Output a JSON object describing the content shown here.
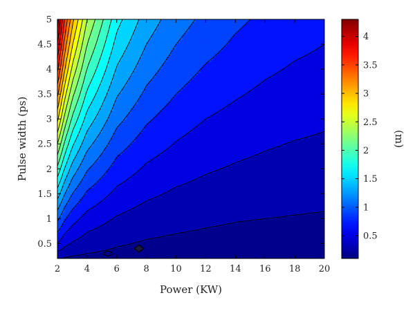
{
  "chart_data": {
    "type": "heatmap",
    "subtype": "filled-contour",
    "title": "",
    "xlabel": "Power (KW)",
    "ylabel": "Pulse width (ps)",
    "colorbar_label": "(m)",
    "colormap": "jet",
    "xlim": [
      2,
      20
    ],
    "ylim": [
      0.2,
      5
    ],
    "clim": [
      0.1,
      4.3
    ],
    "x_ticks": [
      2,
      4,
      6,
      8,
      10,
      12,
      14,
      16,
      18,
      20
    ],
    "y_ticks": [
      0.5,
      1,
      1.5,
      2,
      2.5,
      3,
      3.5,
      4,
      4.5,
      5
    ],
    "colorbar_ticks": [
      0.5,
      1,
      1.5,
      2,
      2.5,
      3,
      3.5,
      4
    ],
    "z_model": {
      "power_kw": [
        2,
        2.5,
        3,
        4,
        6,
        8,
        10,
        12,
        14,
        16,
        18,
        20
      ],
      "pulse_width_ps": [
        0.2,
        0.3,
        0.5,
        1,
        1.5,
        2,
        2.5,
        3,
        3.5,
        4,
        4.5,
        5
      ],
      "values_m": [
        [
          0.22,
          0.18,
          0.16,
          0.14,
          0.12,
          0.1,
          0.1,
          0.09,
          0.09,
          0.09,
          0.09,
          0.09
        ],
        [
          0.35,
          0.28,
          0.24,
          0.2,
          0.16,
          0.14,
          0.13,
          0.12,
          0.12,
          0.11,
          0.11,
          0.11
        ],
        [
          0.6,
          0.45,
          0.38,
          0.3,
          0.22,
          0.18,
          0.16,
          0.15,
          0.14,
          0.13,
          0.13,
          0.12
        ],
        [
          1.05,
          0.82,
          0.68,
          0.52,
          0.38,
          0.3,
          0.26,
          0.23,
          0.21,
          0.2,
          0.19,
          0.18
        ],
        [
          1.5,
          1.2,
          1.0,
          0.77,
          0.55,
          0.44,
          0.37,
          0.33,
          0.3,
          0.28,
          0.26,
          0.25
        ],
        [
          1.95,
          1.58,
          1.32,
          1.02,
          0.72,
          0.57,
          0.48,
          0.42,
          0.38,
          0.35,
          0.33,
          0.31
        ],
        [
          2.4,
          1.95,
          1.64,
          1.27,
          0.89,
          0.7,
          0.59,
          0.51,
          0.46,
          0.42,
          0.39,
          0.37
        ],
        [
          2.85,
          2.32,
          1.96,
          1.52,
          1.06,
          0.83,
          0.69,
          0.6,
          0.54,
          0.49,
          0.46,
          0.43
        ],
        [
          3.25,
          2.66,
          2.26,
          1.76,
          1.22,
          0.96,
          0.8,
          0.69,
          0.62,
          0.56,
          0.52,
          0.49
        ],
        [
          3.65,
          3.0,
          2.55,
          1.99,
          1.38,
          1.08,
          0.9,
          0.78,
          0.7,
          0.63,
          0.58,
          0.55
        ],
        [
          4.0,
          3.3,
          2.82,
          2.2,
          1.53,
          1.2,
          1.0,
          0.87,
          0.77,
          0.7,
          0.64,
          0.6
        ],
        [
          4.3,
          3.58,
          3.07,
          2.4,
          1.67,
          1.31,
          1.09,
          0.95,
          0.84,
          0.76,
          0.7,
          0.65
        ]
      ]
    },
    "contour_levels": [
      0.2,
      0.4,
      0.6,
      0.8,
      1.0,
      1.2,
      1.4,
      1.6,
      1.8,
      2.0,
      2.2,
      2.4,
      2.6,
      2.8,
      3.0,
      3.2,
      3.4,
      3.6,
      3.8,
      4.0,
      4.2
    ],
    "markers": [
      {
        "shape": "filled-diamond",
        "x": 7.5,
        "y": 0.4
      },
      {
        "shape": "open-ellipse",
        "x": 5.4,
        "y": 0.3
      }
    ]
  }
}
